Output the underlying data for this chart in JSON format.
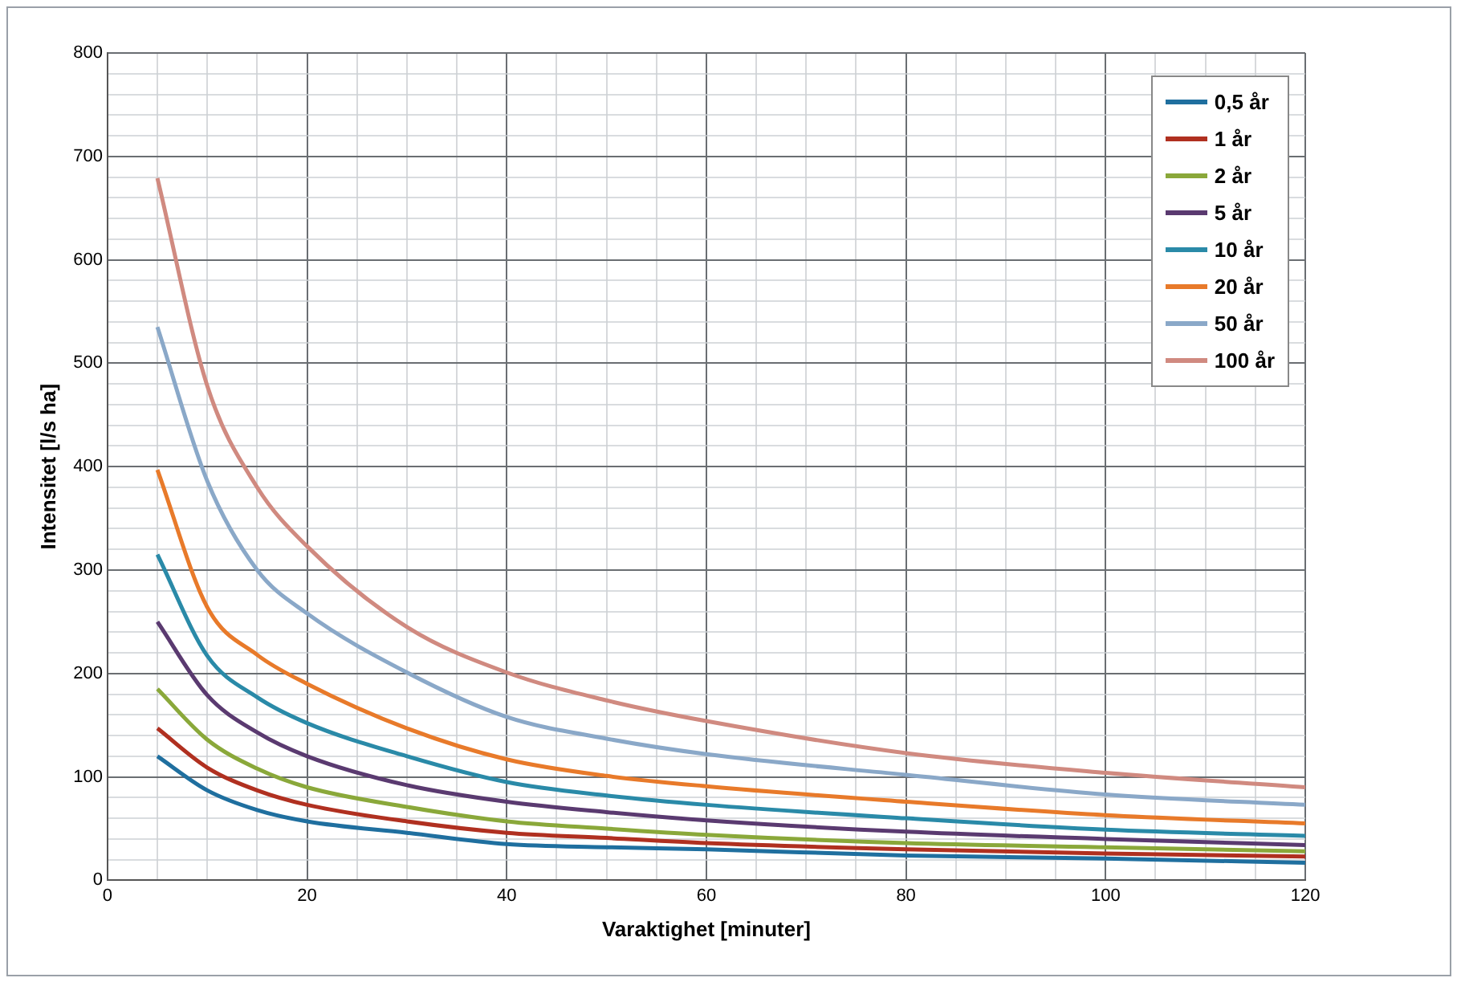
{
  "chart_data": {
    "type": "line",
    "xlabel": "Varaktighet [minuter]",
    "ylabel": "Intensitet [l/s ha]",
    "x": [
      5,
      10,
      15,
      20,
      30,
      40,
      50,
      60,
      80,
      100,
      120
    ],
    "xlim": [
      0,
      120
    ],
    "xticks": [
      0,
      {
        "value": 5,
        "label": null
      },
      {
        "value": 10,
        "label": null
      },
      {
        "value": 15,
        "label": null
      },
      20,
      {
        "value": 25,
        "label": null
      },
      {
        "value": 30,
        "label": null
      },
      {
        "value": 35,
        "label": null
      },
      40,
      {
        "value": 45,
        "label": null
      },
      {
        "value": 50,
        "label": null
      },
      {
        "value": 55,
        "label": null
      },
      60,
      {
        "value": 65,
        "label": null
      },
      {
        "value": 70,
        "label": null
      },
      {
        "value": 75,
        "label": null
      },
      80,
      {
        "value": 85,
        "label": null
      },
      {
        "value": 90,
        "label": null
      },
      {
        "value": 95,
        "label": null
      },
      100,
      {
        "value": 105,
        "label": null
      },
      {
        "value": 110,
        "label": null
      },
      {
        "value": 115,
        "label": null
      },
      120
    ],
    "ylim": [
      0,
      800
    ],
    "yticks": [
      0,
      {
        "value": 20,
        "label": null
      },
      {
        "value": 40,
        "label": null
      },
      {
        "value": 60,
        "label": null
      },
      {
        "value": 80,
        "label": null
      },
      100,
      {
        "value": 120,
        "label": null
      },
      {
        "value": 140,
        "label": null
      },
      {
        "value": 160,
        "label": null
      },
      {
        "value": 180,
        "label": null
      },
      200,
      {
        "value": 220,
        "label": null
      },
      {
        "value": 240,
        "label": null
      },
      {
        "value": 260,
        "label": null
      },
      {
        "value": 280,
        "label": null
      },
      300,
      {
        "value": 320,
        "label": null
      },
      {
        "value": 340,
        "label": null
      },
      {
        "value": 360,
        "label": null
      },
      {
        "value": 380,
        "label": null
      },
      400,
      {
        "value": 420,
        "label": null
      },
      {
        "value": 440,
        "label": null
      },
      {
        "value": 460,
        "label": null
      },
      {
        "value": 480,
        "label": null
      },
      500,
      {
        "value": 520,
        "label": null
      },
      {
        "value": 540,
        "label": null
      },
      {
        "value": 560,
        "label": null
      },
      {
        "value": 580,
        "label": null
      },
      600,
      {
        "value": 620,
        "label": null
      },
      {
        "value": 640,
        "label": null
      },
      {
        "value": 660,
        "label": null
      },
      {
        "value": 680,
        "label": null
      },
      700,
      {
        "value": 720,
        "label": null
      },
      {
        "value": 740,
        "label": null
      },
      {
        "value": 760,
        "label": null
      },
      {
        "value": 780,
        "label": null
      },
      800
    ],
    "grid": true,
    "legend": "top right",
    "marker": "none",
    "line_style": "solid",
    "series": [
      {
        "name": "0,5 år",
        "color": "#1f6f9f",
        "values": [
          120,
          87,
          68,
          57,
          46,
          35,
          32,
          30,
          24,
          21,
          17
        ]
      },
      {
        "name": "1 år",
        "color": "#b03020",
        "values": [
          147,
          109,
          87,
          73,
          57,
          46,
          41,
          36,
          30,
          26,
          23
        ]
      },
      {
        "name": "2 år",
        "color": "#8aa83a",
        "values": [
          185,
          136,
          108,
          90,
          71,
          57,
          50,
          44,
          36,
          32,
          28
        ]
      },
      {
        "name": "5 år",
        "color": "#5a3a70",
        "values": [
          250,
          179,
          143,
          120,
          92,
          76,
          66,
          58,
          47,
          40,
          34
        ]
      },
      {
        "name": "10 år",
        "color": "#2a8aa8",
        "values": [
          315,
          217,
          177,
          152,
          120,
          95,
          82,
          73,
          60,
          49,
          43
        ]
      },
      {
        "name": "20 år",
        "color": "#e87a2a",
        "values": [
          397,
          264,
          218,
          190,
          147,
          117,
          101,
          91,
          76,
          63,
          55
        ]
      },
      {
        "name": "50 år",
        "color": "#8aa8c8",
        "values": [
          535,
          386,
          300,
          258,
          201,
          158,
          137,
          122,
          102,
          83,
          73
        ]
      },
      {
        "name": "100 år",
        "color": "#d08a80",
        "values": [
          679,
          478,
          380,
          323,
          245,
          201,
          174,
          154,
          123,
          104,
          90
        ]
      }
    ]
  }
}
